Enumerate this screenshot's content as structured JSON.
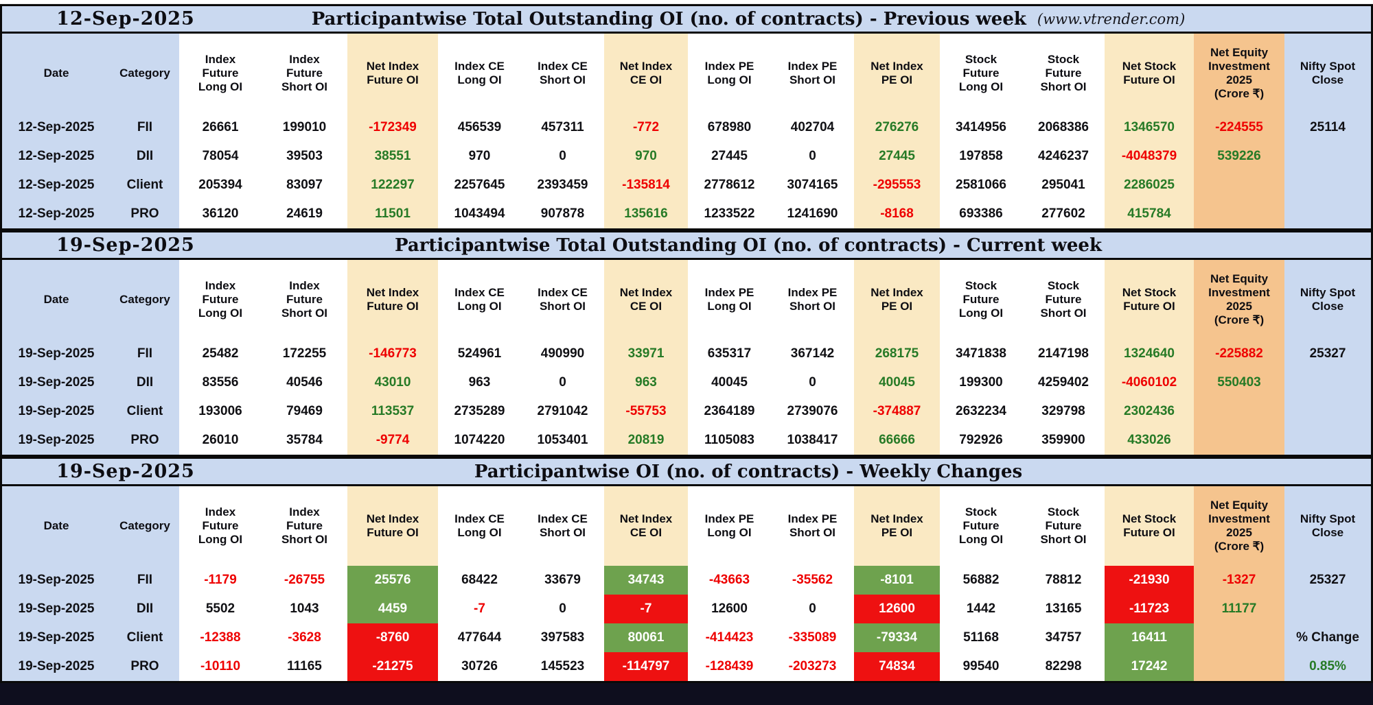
{
  "colors": {
    "blue": "#cad9f0",
    "cream": "#fae9c3",
    "orange": "#f5c48e",
    "green_text": "#267a26",
    "red_text": "#ee0000",
    "green_bg": "#6ea24e",
    "red_bg": "#ee1111"
  },
  "column_headers": [
    {
      "label": "Date",
      "bg": "blue"
    },
    {
      "label": "Category",
      "bg": "blue"
    },
    {
      "label": "Index\nFuture\nLong OI",
      "bg": "white"
    },
    {
      "label": "Index\nFuture\nShort OI",
      "bg": "white"
    },
    {
      "label": "Net Index\nFuture OI",
      "bg": "cream"
    },
    {
      "label": "Index CE\nLong OI",
      "bg": "white"
    },
    {
      "label": "Index CE\nShort OI",
      "bg": "white"
    },
    {
      "label": "Net Index\nCE OI",
      "bg": "cream"
    },
    {
      "label": "Index PE\nLong OI",
      "bg": "white"
    },
    {
      "label": "Index PE\nShort OI",
      "bg": "white"
    },
    {
      "label": "Net Index\nPE OI",
      "bg": "cream"
    },
    {
      "label": "Stock\nFuture\nLong OI",
      "bg": "white"
    },
    {
      "label": "Stock\nFuture\nShort OI",
      "bg": "white"
    },
    {
      "label": "Net Stock\nFuture OI",
      "bg": "cream"
    },
    {
      "label": "Net Equity\nInvestment\n2025\n(Crore ₹)",
      "bg": "orange"
    },
    {
      "label": "Nifty Spot\nClose",
      "bg": "blue"
    }
  ],
  "sections": [
    {
      "date": "12-Sep-2025",
      "title": "Participantwise Total Outstanding OI (no. of contracts) - Previous week",
      "url": "(www.vtrender.com)",
      "rows": [
        {
          "date": "12-Sep-2025",
          "category": "FII",
          "cells": [
            {
              "v": "26661"
            },
            {
              "v": "199010"
            },
            {
              "v": "-172349",
              "s": "r"
            },
            {
              "v": "456539"
            },
            {
              "v": "457311"
            },
            {
              "v": "-772",
              "s": "r"
            },
            {
              "v": "678980"
            },
            {
              "v": "402704"
            },
            {
              "v": "276276",
              "s": "g"
            },
            {
              "v": "3414956"
            },
            {
              "v": "2068386"
            },
            {
              "v": "1346570",
              "s": "g"
            },
            {
              "v": "-224555",
              "s": "r"
            },
            {
              "v": "25114"
            }
          ]
        },
        {
          "date": "12-Sep-2025",
          "category": "DII",
          "cells": [
            {
              "v": "78054"
            },
            {
              "v": "39503"
            },
            {
              "v": "38551",
              "s": "g"
            },
            {
              "v": "970"
            },
            {
              "v": "0"
            },
            {
              "v": "970",
              "s": "g"
            },
            {
              "v": "27445"
            },
            {
              "v": "0"
            },
            {
              "v": "27445",
              "s": "g"
            },
            {
              "v": "197858"
            },
            {
              "v": "4246237"
            },
            {
              "v": "-4048379",
              "s": "r"
            },
            {
              "v": "539226",
              "s": "g"
            },
            {
              "v": ""
            }
          ]
        },
        {
          "date": "12-Sep-2025",
          "category": "Client",
          "cells": [
            {
              "v": "205394"
            },
            {
              "v": "83097"
            },
            {
              "v": "122297",
              "s": "g"
            },
            {
              "v": "2257645"
            },
            {
              "v": "2393459"
            },
            {
              "v": "-135814",
              "s": "r"
            },
            {
              "v": "2778612"
            },
            {
              "v": "3074165"
            },
            {
              "v": "-295553",
              "s": "r"
            },
            {
              "v": "2581066"
            },
            {
              "v": "295041"
            },
            {
              "v": "2286025",
              "s": "g"
            },
            {
              "v": ""
            },
            {
              "v": ""
            }
          ]
        },
        {
          "date": "12-Sep-2025",
          "category": "PRO",
          "cells": [
            {
              "v": "36120"
            },
            {
              "v": "24619"
            },
            {
              "v": "11501",
              "s": "g"
            },
            {
              "v": "1043494"
            },
            {
              "v": "907878"
            },
            {
              "v": "135616",
              "s": "g"
            },
            {
              "v": "1233522"
            },
            {
              "v": "1241690"
            },
            {
              "v": "-8168",
              "s": "r"
            },
            {
              "v": "693386"
            },
            {
              "v": "277602"
            },
            {
              "v": "415784",
              "s": "g"
            },
            {
              "v": ""
            },
            {
              "v": ""
            }
          ]
        }
      ]
    },
    {
      "date": "19-Sep-2025",
      "title": "Participantwise Total Outstanding OI (no. of contracts) - Current week",
      "rows": [
        {
          "date": "19-Sep-2025",
          "category": "FII",
          "cells": [
            {
              "v": "25482"
            },
            {
              "v": "172255"
            },
            {
              "v": "-146773",
              "s": "r"
            },
            {
              "v": "524961"
            },
            {
              "v": "490990"
            },
            {
              "v": "33971",
              "s": "g"
            },
            {
              "v": "635317"
            },
            {
              "v": "367142"
            },
            {
              "v": "268175",
              "s": "g"
            },
            {
              "v": "3471838"
            },
            {
              "v": "2147198"
            },
            {
              "v": "1324640",
              "s": "g"
            },
            {
              "v": "-225882",
              "s": "r"
            },
            {
              "v": "25327"
            }
          ]
        },
        {
          "date": "19-Sep-2025",
          "category": "DII",
          "cells": [
            {
              "v": "83556"
            },
            {
              "v": "40546"
            },
            {
              "v": "43010",
              "s": "g"
            },
            {
              "v": "963"
            },
            {
              "v": "0"
            },
            {
              "v": "963",
              "s": "g"
            },
            {
              "v": "40045"
            },
            {
              "v": "0"
            },
            {
              "v": "40045",
              "s": "g"
            },
            {
              "v": "199300"
            },
            {
              "v": "4259402"
            },
            {
              "v": "-4060102",
              "s": "r"
            },
            {
              "v": "550403",
              "s": "g"
            },
            {
              "v": ""
            }
          ]
        },
        {
          "date": "19-Sep-2025",
          "category": "Client",
          "cells": [
            {
              "v": "193006"
            },
            {
              "v": "79469"
            },
            {
              "v": "113537",
              "s": "g"
            },
            {
              "v": "2735289"
            },
            {
              "v": "2791042"
            },
            {
              "v": "-55753",
              "s": "r"
            },
            {
              "v": "2364189"
            },
            {
              "v": "2739076"
            },
            {
              "v": "-374887",
              "s": "r"
            },
            {
              "v": "2632234"
            },
            {
              "v": "329798"
            },
            {
              "v": "2302436",
              "s": "g"
            },
            {
              "v": ""
            },
            {
              "v": ""
            }
          ]
        },
        {
          "date": "19-Sep-2025",
          "category": "PRO",
          "cells": [
            {
              "v": "26010"
            },
            {
              "v": "35784"
            },
            {
              "v": "-9774",
              "s": "r"
            },
            {
              "v": "1074220"
            },
            {
              "v": "1053401"
            },
            {
              "v": "20819",
              "s": "g"
            },
            {
              "v": "1105083"
            },
            {
              "v": "1038417"
            },
            {
              "v": "66666",
              "s": "g"
            },
            {
              "v": "792926"
            },
            {
              "v": "359900"
            },
            {
              "v": "433026",
              "s": "g"
            },
            {
              "v": ""
            },
            {
              "v": ""
            }
          ]
        }
      ]
    },
    {
      "date": "19-Sep-2025",
      "title": "Participantwise OI (no. of contracts) - Weekly Changes",
      "rows": [
        {
          "date": "19-Sep-2025",
          "category": "FII",
          "cells": [
            {
              "v": "-1179",
              "s": "r"
            },
            {
              "v": "-26755",
              "s": "r"
            },
            {
              "v": "25576",
              "s": "G"
            },
            {
              "v": "68422"
            },
            {
              "v": "33679"
            },
            {
              "v": "34743",
              "s": "G"
            },
            {
              "v": "-43663",
              "s": "r"
            },
            {
              "v": "-35562",
              "s": "r"
            },
            {
              "v": "-8101",
              "s": "G"
            },
            {
              "v": "56882"
            },
            {
              "v": "78812"
            },
            {
              "v": "-21930",
              "s": "R"
            },
            {
              "v": "-1327",
              "s": "r"
            },
            {
              "v": "25327"
            }
          ]
        },
        {
          "date": "19-Sep-2025",
          "category": "DII",
          "cells": [
            {
              "v": "5502"
            },
            {
              "v": "1043"
            },
            {
              "v": "4459",
              "s": "G"
            },
            {
              "v": "-7",
              "s": "r"
            },
            {
              "v": "0"
            },
            {
              "v": "-7",
              "s": "R"
            },
            {
              "v": "12600"
            },
            {
              "v": "0"
            },
            {
              "v": "12600",
              "s": "R"
            },
            {
              "v": "1442"
            },
            {
              "v": "13165"
            },
            {
              "v": "-11723",
              "s": "R"
            },
            {
              "v": "11177",
              "s": "g"
            },
            {
              "v": ""
            }
          ]
        },
        {
          "date": "19-Sep-2025",
          "category": "Client",
          "cells": [
            {
              "v": "-12388",
              "s": "r"
            },
            {
              "v": "-3628",
              "s": "r"
            },
            {
              "v": "-8760",
              "s": "R"
            },
            {
              "v": "477644"
            },
            {
              "v": "397583"
            },
            {
              "v": "80061",
              "s": "G"
            },
            {
              "v": "-414423",
              "s": "r"
            },
            {
              "v": "-335089",
              "s": "r"
            },
            {
              "v": "-79334",
              "s": "G"
            },
            {
              "v": "51168"
            },
            {
              "v": "34757"
            },
            {
              "v": "16411",
              "s": "G"
            },
            {
              "v": ""
            },
            {
              "v": "% Change"
            }
          ]
        },
        {
          "date": "19-Sep-2025",
          "category": "PRO",
          "cells": [
            {
              "v": "-10110",
              "s": "r"
            },
            {
              "v": "11165"
            },
            {
              "v": "-21275",
              "s": "R"
            },
            {
              "v": "30726"
            },
            {
              "v": "145523"
            },
            {
              "v": "-114797",
              "s": "R"
            },
            {
              "v": "-128439",
              "s": "r"
            },
            {
              "v": "-203273",
              "s": "r"
            },
            {
              "v": "74834",
              "s": "R"
            },
            {
              "v": "99540"
            },
            {
              "v": "82298"
            },
            {
              "v": "17242",
              "s": "G"
            },
            {
              "v": ""
            },
            {
              "v": "0.85%",
              "s": "g"
            }
          ]
        }
      ]
    }
  ]
}
